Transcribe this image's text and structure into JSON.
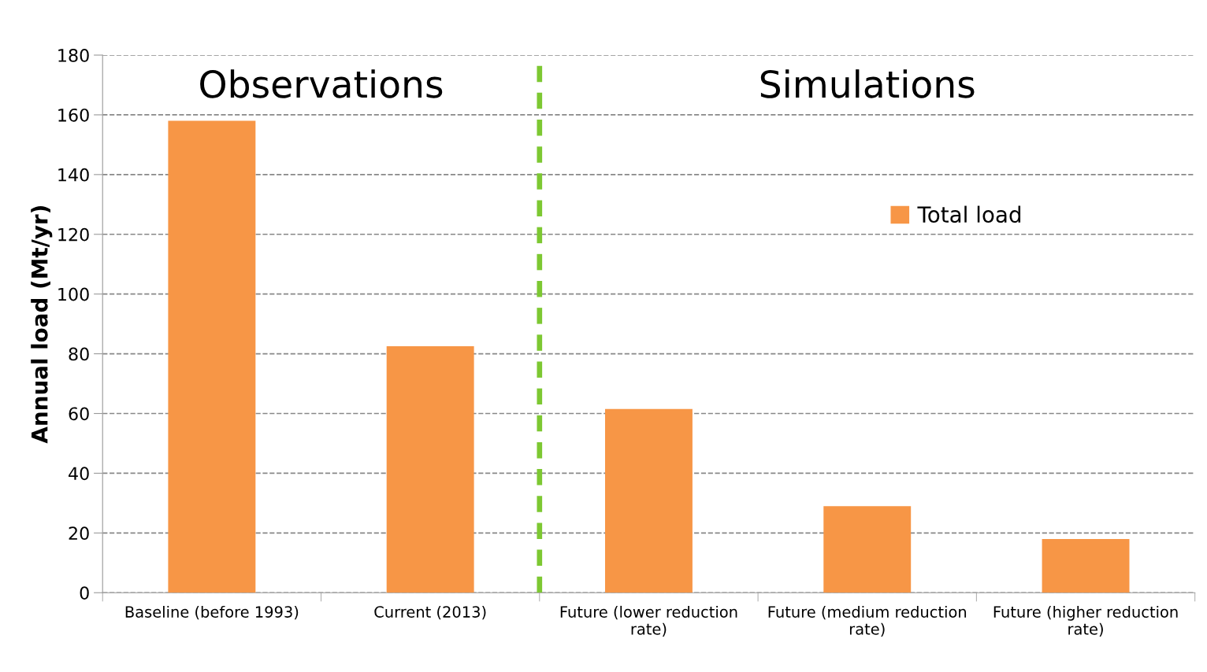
{
  "chart_data": {
    "type": "bar",
    "ylabel": "Annual load (Mt/yr)",
    "categories": [
      "Baseline (before 1993)",
      "Current (2013)",
      "Future (lower reduction rate)",
      "Future (medium reduction rate)",
      "Future (higher reduction rate)"
    ],
    "series": [
      {
        "name": "Total load",
        "color": "#f79646",
        "values": [
          158,
          82.5,
          61.5,
          29,
          18
        ]
      }
    ],
    "ylim": [
      0,
      180
    ],
    "yticks": [
      0,
      20,
      40,
      60,
      80,
      100,
      120,
      140,
      160,
      180
    ],
    "grid": "y",
    "legend": "right",
    "annotations": [
      "Observations",
      "Simulations"
    ]
  }
}
